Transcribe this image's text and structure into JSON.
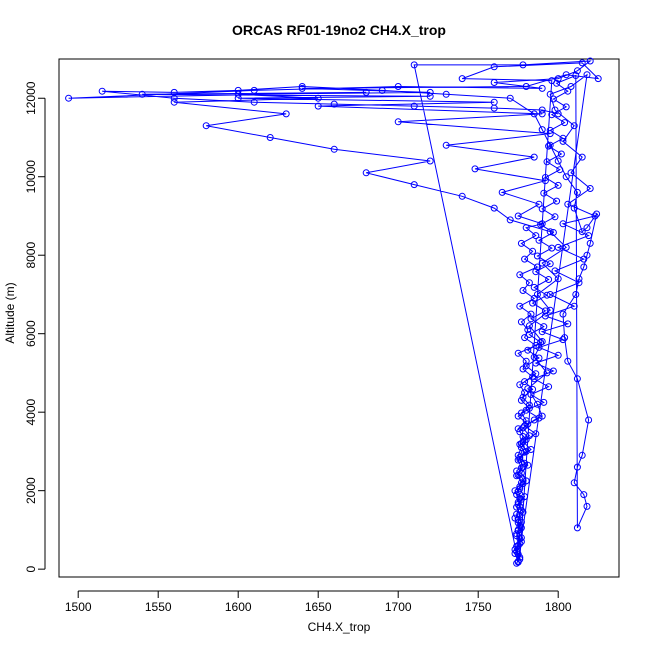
{
  "chart_data": {
    "type": "line",
    "title": "ORCAS RF01-19no2 CH4.X_trop",
    "xlabel": "CH4.X_trop",
    "ylabel": "Altitude (m)",
    "xlim": [
      1488,
      1838
    ],
    "ylim": [
      -200,
      13000
    ],
    "x_ticks": [
      1500,
      1550,
      1600,
      1650,
      1700,
      1750,
      1800
    ],
    "y_ticks": [
      0,
      2000,
      4000,
      6000,
      8000,
      10000,
      12000
    ],
    "series_color": "#0000ff",
    "marker": "open-circle",
    "grid": false,
    "legend": "none",
    "series": [
      {
        "points": [
          [
            1774,
            150
          ],
          [
            1776,
            300
          ],
          [
            1773,
            500
          ],
          [
            1777,
            700
          ],
          [
            1774,
            900
          ],
          [
            1776,
            1100
          ],
          [
            1773,
            1300
          ],
          [
            1777,
            1500
          ],
          [
            1775,
            1700
          ],
          [
            1774,
            1900
          ],
          [
            1776,
            2100
          ],
          [
            1778,
            2300
          ],
          [
            1774,
            2500
          ],
          [
            1779,
            2700
          ],
          [
            1775,
            2900
          ],
          [
            1777,
            3100
          ],
          [
            1780,
            3300
          ],
          [
            1776,
            3500
          ],
          [
            1781,
            3700
          ],
          [
            1775,
            3900
          ],
          [
            1782,
            4100
          ],
          [
            1777,
            4300
          ],
          [
            1779,
            4500
          ],
          [
            1776,
            4700
          ],
          [
            1784,
            4900
          ],
          [
            1778,
            5100
          ],
          [
            1780,
            5300
          ],
          [
            1775,
            5500
          ],
          [
            1786,
            5700
          ],
          [
            1779,
            5900
          ],
          [
            1781,
            6100
          ],
          [
            1777,
            6300
          ],
          [
            1783,
            6500
          ],
          [
            1776,
            6700
          ],
          [
            1785,
            6900
          ],
          [
            1778,
            7100
          ],
          [
            1782,
            7300
          ],
          [
            1776,
            7500
          ],
          [
            1787,
            7700
          ],
          [
            1779,
            7900
          ],
          [
            1784,
            8100
          ],
          [
            1777,
            8300
          ],
          [
            1786,
            8500
          ],
          [
            1780,
            8700
          ],
          [
            1790,
            8800
          ],
          [
            1775,
            9000
          ],
          [
            1788,
            9300
          ],
          [
            1765,
            9600
          ],
          [
            1792,
            9900
          ],
          [
            1748,
            10200
          ],
          [
            1785,
            10500
          ],
          [
            1730,
            10800
          ],
          [
            1795,
            11100
          ],
          [
            1700,
            11400
          ],
          [
            1790,
            11600
          ],
          [
            1650,
            11800
          ],
          [
            1760,
            11900
          ],
          [
            1600,
            12000
          ],
          [
            1720,
            12050
          ],
          [
            1540,
            12100
          ],
          [
            1680,
            12150
          ],
          [
            1494,
            12000
          ],
          [
            1610,
            12200
          ],
          [
            1700,
            12300
          ],
          [
            1790,
            12250
          ],
          [
            1760,
            12400
          ],
          [
            1800,
            12500
          ],
          [
            1812,
            12700
          ],
          [
            1820,
            12950
          ],
          [
            1778,
            12850
          ],
          [
            1710,
            12850
          ],
          [
            1775,
            200
          ],
          [
            1773,
            400
          ],
          [
            1775,
            600
          ],
          [
            1777,
            800
          ],
          [
            1775,
            1000
          ],
          [
            1777,
            1200
          ],
          [
            1774,
            1400
          ],
          [
            1776,
            1600
          ],
          [
            1776,
            1800
          ],
          [
            1773,
            2000
          ],
          [
            1777,
            2200
          ],
          [
            1775,
            2400
          ],
          [
            1778,
            2600
          ],
          [
            1776,
            2800
          ],
          [
            1780,
            3000
          ],
          [
            1777,
            3200
          ],
          [
            1782,
            3400
          ],
          [
            1778,
            3600
          ],
          [
            1785,
            3800
          ],
          [
            1790,
            3900
          ],
          [
            1787,
            4200
          ],
          [
            1781,
            4600
          ],
          [
            1793,
            5000
          ],
          [
            1785,
            5400
          ],
          [
            1790,
            5800
          ],
          [
            1782,
            6200
          ],
          [
            1795,
            6600
          ],
          [
            1787,
            7000
          ],
          [
            1800,
            7400
          ],
          [
            1790,
            7800
          ],
          [
            1805,
            8200
          ],
          [
            1795,
            8600
          ],
          [
            1770,
            8900
          ],
          [
            1760,
            9200
          ],
          [
            1740,
            9500
          ],
          [
            1710,
            9800
          ],
          [
            1680,
            10100
          ],
          [
            1720,
            10400
          ],
          [
            1660,
            10700
          ],
          [
            1620,
            11000
          ],
          [
            1580,
            11300
          ],
          [
            1630,
            11600
          ],
          [
            1560,
            11900
          ],
          [
            1650,
            12000
          ],
          [
            1600,
            12100
          ],
          [
            1720,
            12150
          ],
          [
            1640,
            12250
          ],
          [
            1780,
            12300
          ],
          [
            1805,
            12600
          ],
          [
            1825,
            12500
          ],
          [
            1815,
            12900
          ],
          [
            1760,
            12800
          ],
          [
            1740,
            12500
          ],
          [
            1796,
            12450
          ],
          [
            1776,
            250
          ],
          [
            1774,
            450
          ],
          [
            1776,
            650
          ],
          [
            1774,
            850
          ],
          [
            1777,
            1050
          ],
          [
            1775,
            1250
          ],
          [
            1778,
            1450
          ],
          [
            1775,
            1650
          ],
          [
            1779,
            1850
          ],
          [
            1776,
            2050
          ],
          [
            1780,
            2250
          ],
          [
            1777,
            2450
          ],
          [
            1781,
            2650
          ],
          [
            1776,
            2850
          ],
          [
            1783,
            3050
          ],
          [
            1778,
            3250
          ],
          [
            1786,
            3450
          ],
          [
            1779,
            3650
          ],
          [
            1788,
            3850
          ],
          [
            1780,
            4050
          ],
          [
            1791,
            4250
          ],
          [
            1783,
            4450
          ],
          [
            1794,
            4650
          ],
          [
            1785,
            4850
          ],
          [
            1797,
            5050
          ],
          [
            1786,
            5250
          ],
          [
            1800,
            5450
          ],
          [
            1788,
            5650
          ],
          [
            1803,
            5850
          ],
          [
            1790,
            6050
          ],
          [
            1806,
            6250
          ],
          [
            1792,
            6450
          ],
          [
            1810,
            6700
          ],
          [
            1795,
            7000
          ],
          [
            1813,
            7300
          ],
          [
            1798,
            7600
          ],
          [
            1816,
            7900
          ],
          [
            1800,
            8200
          ],
          [
            1819,
            8500
          ],
          [
            1803,
            8800
          ],
          [
            1823,
            9000
          ],
          [
            1806,
            9300
          ],
          [
            1820,
            9700
          ],
          [
            1808,
            10100
          ],
          [
            1815,
            10500
          ],
          [
            1803,
            10900
          ],
          [
            1810,
            11300
          ],
          [
            1798,
            11700
          ],
          [
            1795,
            12100
          ],
          [
            1808,
            12300
          ],
          [
            1818,
            12600
          ],
          [
            1775,
            180
          ],
          [
            1775,
            380
          ],
          [
            1774,
            580
          ],
          [
            1776,
            780
          ],
          [
            1775,
            980
          ],
          [
            1775,
            1180
          ],
          [
            1776,
            1380
          ],
          [
            1774,
            1580
          ],
          [
            1777,
            1780
          ],
          [
            1775,
            1980
          ],
          [
            1778,
            2180
          ],
          [
            1774,
            2380
          ],
          [
            1777,
            2580
          ],
          [
            1775,
            2780
          ],
          [
            1779,
            2980
          ],
          [
            1776,
            3180
          ],
          [
            1778,
            3380
          ],
          [
            1775,
            3580
          ],
          [
            1780,
            3780
          ],
          [
            1777,
            3980
          ],
          [
            1782,
            4180
          ],
          [
            1778,
            4380
          ],
          [
            1784,
            4580
          ],
          [
            1779,
            4780
          ],
          [
            1786,
            4980
          ],
          [
            1780,
            5180
          ],
          [
            1788,
            5380
          ],
          [
            1781,
            5580
          ],
          [
            1789,
            5780
          ],
          [
            1782,
            5980
          ],
          [
            1791,
            6180
          ],
          [
            1783,
            6380
          ],
          [
            1792,
            6580
          ],
          [
            1784,
            6780
          ],
          [
            1793,
            6980
          ],
          [
            1785,
            7180
          ],
          [
            1794,
            7380
          ],
          [
            1786,
            7580
          ],
          [
            1795,
            7780
          ],
          [
            1787,
            7980
          ],
          [
            1796,
            8180
          ],
          [
            1788,
            8380
          ],
          [
            1797,
            8580
          ],
          [
            1789,
            8780
          ],
          [
            1798,
            8980
          ],
          [
            1790,
            9180
          ],
          [
            1799,
            9380
          ],
          [
            1791,
            9580
          ],
          [
            1800,
            9780
          ],
          [
            1792,
            9980
          ],
          [
            1801,
            10180
          ],
          [
            1793,
            10380
          ],
          [
            1802,
            10580
          ],
          [
            1794,
            10780
          ],
          [
            1803,
            10980
          ],
          [
            1795,
            11180
          ],
          [
            1804,
            11380
          ],
          [
            1796,
            11580
          ],
          [
            1805,
            11780
          ],
          [
            1797,
            11980
          ],
          [
            1806,
            12180
          ],
          [
            1799,
            12380
          ],
          [
            1811,
            12580
          ],
          [
            1812,
            1050
          ],
          [
            1818,
            1600
          ],
          [
            1816,
            1900
          ],
          [
            1810,
            2200
          ],
          [
            1812,
            2600
          ],
          [
            1815,
            2900
          ],
          [
            1819,
            3800
          ],
          [
            1812,
            4850
          ],
          [
            1806,
            5300
          ],
          [
            1804,
            5900
          ],
          [
            1803,
            6500
          ],
          [
            1811,
            7000
          ],
          [
            1813,
            7400
          ],
          [
            1816,
            7700
          ],
          [
            1818,
            8000
          ],
          [
            1820,
            8300
          ],
          [
            1824,
            9050
          ],
          [
            1818,
            8700
          ],
          [
            1815,
            8600
          ],
          [
            1810,
            9200
          ],
          [
            1812,
            9600
          ],
          [
            1805,
            10000
          ],
          [
            1800,
            10400
          ],
          [
            1795,
            10800
          ],
          [
            1790,
            11200
          ],
          [
            1785,
            11600
          ],
          [
            1770,
            12000
          ],
          [
            1730,
            12100
          ],
          [
            1690,
            12200
          ],
          [
            1640,
            12300
          ],
          [
            1600,
            12200
          ],
          [
            1560,
            12150
          ],
          [
            1515,
            12180
          ],
          [
            1560,
            12000
          ],
          [
            1610,
            11900
          ],
          [
            1660,
            11850
          ],
          [
            1710,
            11800
          ],
          [
            1760,
            11750
          ],
          [
            1790,
            11700
          ],
          [
            1800,
            11600
          ]
        ]
      }
    ]
  }
}
